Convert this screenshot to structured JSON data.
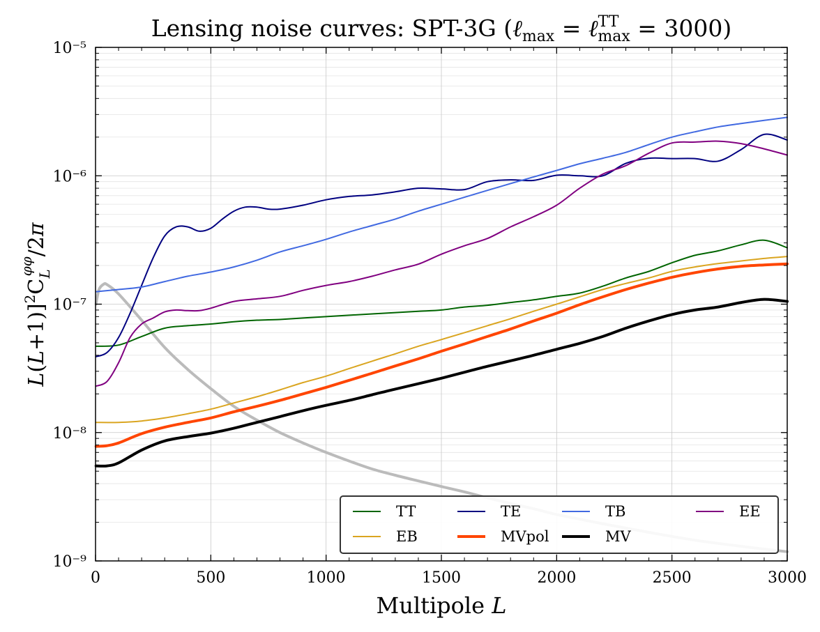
{
  "chart_data": {
    "type": "line",
    "title": "Lensing noise curves: SPT-3G (ℓmax = ℓTTmax = 3000)",
    "xlabel": "Multipole L",
    "ylabel": "L(L+1)]²C_L^φφ/2π",
    "xlim": [
      0,
      3000
    ],
    "ylim": [
      1e-09,
      1e-05
    ],
    "yscale": "log",
    "grid": true,
    "legend_position": "lower-right",
    "x_ticks": [
      "0",
      "500",
      "1000",
      "1500",
      "2000",
      "2500",
      "3000"
    ],
    "y_ticks": [
      "10⁻⁹",
      "10⁻⁸",
      "10⁻⁷",
      "10⁻⁶",
      "10⁻⁵"
    ],
    "series": [
      {
        "name": "TT",
        "color": "#006400",
        "width": 2,
        "points": [
          [
            2,
            4.7e-08
          ],
          [
            100,
            4.8e-08
          ],
          [
            200,
            5.6e-08
          ],
          [
            300,
            6.5e-08
          ],
          [
            400,
            6.8e-08
          ],
          [
            500,
            7e-08
          ],
          [
            600,
            7.3e-08
          ],
          [
            700,
            7.5e-08
          ],
          [
            800,
            7.6e-08
          ],
          [
            900,
            7.8e-08
          ],
          [
            1000,
            8e-08
          ],
          [
            1100,
            8.2e-08
          ],
          [
            1200,
            8.4e-08
          ],
          [
            1300,
            8.6e-08
          ],
          [
            1400,
            8.8e-08
          ],
          [
            1500,
            9e-08
          ],
          [
            1600,
            9.5e-08
          ],
          [
            1700,
            9.8e-08
          ],
          [
            1800,
            1.03e-07
          ],
          [
            1900,
            1.08e-07
          ],
          [
            2000,
            1.15e-07
          ],
          [
            2100,
            1.22e-07
          ],
          [
            2200,
            1.38e-07
          ],
          [
            2300,
            1.6e-07
          ],
          [
            2400,
            1.8e-07
          ],
          [
            2500,
            2.1e-07
          ],
          [
            2600,
            2.4e-07
          ],
          [
            2700,
            2.6e-07
          ],
          [
            2800,
            2.9e-07
          ],
          [
            2900,
            3.15e-07
          ],
          [
            3000,
            2.75e-07
          ]
        ]
      },
      {
        "name": "TE",
        "color": "#000080",
        "width": 2,
        "points": [
          [
            2,
            3.9e-08
          ],
          [
            50,
            4.2e-08
          ],
          [
            100,
            5.5e-08
          ],
          [
            150,
            8.5e-08
          ],
          [
            200,
            1.4e-07
          ],
          [
            250,
            2.3e-07
          ],
          [
            300,
            3.4e-07
          ],
          [
            350,
            4e-07
          ],
          [
            400,
            4e-07
          ],
          [
            450,
            3.7e-07
          ],
          [
            500,
            3.9e-07
          ],
          [
            550,
            4.6e-07
          ],
          [
            600,
            5.3e-07
          ],
          [
            650,
            5.7e-07
          ],
          [
            700,
            5.7e-07
          ],
          [
            750,
            5.5e-07
          ],
          [
            800,
            5.5e-07
          ],
          [
            900,
            5.9e-07
          ],
          [
            1000,
            6.5e-07
          ],
          [
            1100,
            6.9e-07
          ],
          [
            1200,
            7.1e-07
          ],
          [
            1300,
            7.5e-07
          ],
          [
            1400,
            8e-07
          ],
          [
            1500,
            7.9e-07
          ],
          [
            1600,
            7.8e-07
          ],
          [
            1700,
            9e-07
          ],
          [
            1800,
            9.3e-07
          ],
          [
            1900,
            9.2e-07
          ],
          [
            2000,
            1.01e-06
          ],
          [
            2100,
            1e-06
          ],
          [
            2200,
            1e-06
          ],
          [
            2300,
            1.25e-06
          ],
          [
            2400,
            1.37e-06
          ],
          [
            2500,
            1.36e-06
          ],
          [
            2600,
            1.36e-06
          ],
          [
            2700,
            1.3e-06
          ],
          [
            2800,
            1.6e-06
          ],
          [
            2900,
            2.1e-06
          ],
          [
            3000,
            1.9e-06
          ]
        ]
      },
      {
        "name": "TB",
        "color": "#4169e1",
        "width": 2,
        "points": [
          [
            2,
            1.25e-07
          ],
          [
            100,
            1.3e-07
          ],
          [
            200,
            1.36e-07
          ],
          [
            300,
            1.5e-07
          ],
          [
            400,
            1.65e-07
          ],
          [
            500,
            1.78e-07
          ],
          [
            600,
            1.95e-07
          ],
          [
            700,
            2.2e-07
          ],
          [
            800,
            2.55e-07
          ],
          [
            900,
            2.85e-07
          ],
          [
            1000,
            3.2e-07
          ],
          [
            1100,
            3.65e-07
          ],
          [
            1200,
            4.1e-07
          ],
          [
            1300,
            4.6e-07
          ],
          [
            1400,
            5.3e-07
          ],
          [
            1500,
            6e-07
          ],
          [
            1600,
            6.8e-07
          ],
          [
            1700,
            7.7e-07
          ],
          [
            1800,
            8.7e-07
          ],
          [
            1900,
            9.8e-07
          ],
          [
            2000,
            1.1e-06
          ],
          [
            2100,
            1.24e-06
          ],
          [
            2200,
            1.37e-06
          ],
          [
            2300,
            1.52e-06
          ],
          [
            2400,
            1.75e-06
          ],
          [
            2500,
            2e-06
          ],
          [
            2600,
            2.2e-06
          ],
          [
            2700,
            2.4e-06
          ],
          [
            2800,
            2.55e-06
          ],
          [
            2900,
            2.7e-06
          ],
          [
            3000,
            2.85e-06
          ]
        ]
      },
      {
        "name": "EE",
        "color": "#800080",
        "width": 2,
        "points": [
          [
            2,
            2.3e-08
          ],
          [
            50,
            2.5e-08
          ],
          [
            100,
            3.5e-08
          ],
          [
            150,
            5.5e-08
          ],
          [
            200,
            7e-08
          ],
          [
            250,
            7.8e-08
          ],
          [
            300,
            8.7e-08
          ],
          [
            350,
            9e-08
          ],
          [
            400,
            8.9e-08
          ],
          [
            450,
            8.9e-08
          ],
          [
            500,
            9.3e-08
          ],
          [
            600,
            1.05e-07
          ],
          [
            700,
            1.1e-07
          ],
          [
            800,
            1.15e-07
          ],
          [
            900,
            1.28e-07
          ],
          [
            1000,
            1.4e-07
          ],
          [
            1100,
            1.5e-07
          ],
          [
            1200,
            1.65e-07
          ],
          [
            1300,
            1.85e-07
          ],
          [
            1400,
            2.05e-07
          ],
          [
            1500,
            2.45e-07
          ],
          [
            1600,
            2.85e-07
          ],
          [
            1700,
            3.25e-07
          ],
          [
            1800,
            4e-07
          ],
          [
            1900,
            4.8e-07
          ],
          [
            2000,
            5.9e-07
          ],
          [
            2100,
            8e-07
          ],
          [
            2200,
            1.03e-06
          ],
          [
            2300,
            1.2e-06
          ],
          [
            2400,
            1.5e-06
          ],
          [
            2500,
            1.8e-06
          ],
          [
            2600,
            1.83e-06
          ],
          [
            2700,
            1.86e-06
          ],
          [
            2800,
            1.78e-06
          ],
          [
            2900,
            1.62e-06
          ],
          [
            3000,
            1.45e-06
          ]
        ]
      },
      {
        "name": "EB",
        "color": "#daa520",
        "width": 2,
        "points": [
          [
            2,
            1.2e-08
          ],
          [
            100,
            1.2e-08
          ],
          [
            200,
            1.23e-08
          ],
          [
            300,
            1.3e-08
          ],
          [
            400,
            1.4e-08
          ],
          [
            500,
            1.52e-08
          ],
          [
            600,
            1.7e-08
          ],
          [
            700,
            1.9e-08
          ],
          [
            800,
            2.15e-08
          ],
          [
            900,
            2.45e-08
          ],
          [
            1000,
            2.75e-08
          ],
          [
            1100,
            3.15e-08
          ],
          [
            1200,
            3.6e-08
          ],
          [
            1300,
            4.1e-08
          ],
          [
            1400,
            4.7e-08
          ],
          [
            1500,
            5.3e-08
          ],
          [
            1600,
            6e-08
          ],
          [
            1700,
            6.8e-08
          ],
          [
            1800,
            7.7e-08
          ],
          [
            1900,
            8.8e-08
          ],
          [
            2000,
            1e-07
          ],
          [
            2100,
            1.14e-07
          ],
          [
            2200,
            1.3e-07
          ],
          [
            2300,
            1.45e-07
          ],
          [
            2400,
            1.6e-07
          ],
          [
            2500,
            1.8e-07
          ],
          [
            2600,
            1.95e-07
          ],
          [
            2700,
            2.07e-07
          ],
          [
            2800,
            2.17e-07
          ],
          [
            2900,
            2.27e-07
          ],
          [
            3000,
            2.35e-07
          ]
        ]
      },
      {
        "name": "MVpol",
        "color": "#ff4500",
        "width": 4,
        "points": [
          [
            2,
            7.8e-09
          ],
          [
            50,
            7.9e-09
          ],
          [
            100,
            8.3e-09
          ],
          [
            200,
            9.8e-09
          ],
          [
            300,
            1.1e-08
          ],
          [
            400,
            1.2e-08
          ],
          [
            500,
            1.3e-08
          ],
          [
            600,
            1.45e-08
          ],
          [
            700,
            1.6e-08
          ],
          [
            800,
            1.78e-08
          ],
          [
            900,
            2e-08
          ],
          [
            1000,
            2.25e-08
          ],
          [
            1100,
            2.55e-08
          ],
          [
            1200,
            2.9e-08
          ],
          [
            1300,
            3.3e-08
          ],
          [
            1400,
            3.75e-08
          ],
          [
            1500,
            4.3e-08
          ],
          [
            1600,
            4.9e-08
          ],
          [
            1700,
            5.6e-08
          ],
          [
            1800,
            6.4e-08
          ],
          [
            1900,
            7.4e-08
          ],
          [
            2000,
            8.5e-08
          ],
          [
            2100,
            9.9e-08
          ],
          [
            2200,
            1.14e-07
          ],
          [
            2300,
            1.3e-07
          ],
          [
            2400,
            1.46e-07
          ],
          [
            2500,
            1.62e-07
          ],
          [
            2600,
            1.76e-07
          ],
          [
            2700,
            1.88e-07
          ],
          [
            2800,
            1.97e-07
          ],
          [
            2900,
            2.02e-07
          ],
          [
            3000,
            2.06e-07
          ]
        ]
      },
      {
        "name": "MV",
        "color": "#000000",
        "width": 4,
        "points": [
          [
            2,
            5.5e-09
          ],
          [
            50,
            5.5e-09
          ],
          [
            100,
            5.8e-09
          ],
          [
            200,
            7.3e-09
          ],
          [
            300,
            8.6e-09
          ],
          [
            400,
            9.3e-09
          ],
          [
            500,
            9.9e-09
          ],
          [
            600,
            1.08e-08
          ],
          [
            700,
            1.2e-08
          ],
          [
            800,
            1.33e-08
          ],
          [
            900,
            1.48e-08
          ],
          [
            1000,
            1.63e-08
          ],
          [
            1100,
            1.78e-08
          ],
          [
            1200,
            1.97e-08
          ],
          [
            1300,
            2.18e-08
          ],
          [
            1400,
            2.4e-08
          ],
          [
            1500,
            2.65e-08
          ],
          [
            1600,
            2.95e-08
          ],
          [
            1700,
            3.28e-08
          ],
          [
            1800,
            3.62e-08
          ],
          [
            1900,
            4e-08
          ],
          [
            2000,
            4.45e-08
          ],
          [
            2100,
            4.95e-08
          ],
          [
            2200,
            5.6e-08
          ],
          [
            2300,
            6.5e-08
          ],
          [
            2400,
            7.4e-08
          ],
          [
            2500,
            8.3e-08
          ],
          [
            2600,
            9e-08
          ],
          [
            2700,
            9.5e-08
          ],
          [
            2800,
            1.03e-07
          ],
          [
            2900,
            1.09e-07
          ],
          [
            3000,
            1.05e-07
          ]
        ]
      },
      {
        "color": "#bbbbbb",
        "width": 4,
        "points": [
          [
            2,
            1e-07
          ],
          [
            15,
            1.3e-07
          ],
          [
            35,
            1.43e-07
          ],
          [
            50,
            1.42e-07
          ],
          [
            100,
            1.2e-07
          ],
          [
            200,
            7.5e-08
          ],
          [
            300,
            4.6e-08
          ],
          [
            400,
            3.1e-08
          ],
          [
            500,
            2.2e-08
          ],
          [
            600,
            1.6e-08
          ],
          [
            700,
            1.25e-08
          ],
          [
            800,
            1e-08
          ],
          [
            900,
            8.3e-09
          ],
          [
            1000,
            7e-09
          ],
          [
            1100,
            6e-09
          ],
          [
            1200,
            5.2e-09
          ],
          [
            1300,
            4.65e-09
          ],
          [
            1400,
            4.2e-09
          ],
          [
            1500,
            3.8e-09
          ],
          [
            1600,
            3.45e-09
          ],
          [
            1700,
            3.1e-09
          ],
          [
            1800,
            2.8e-09
          ],
          [
            1900,
            2.55e-09
          ],
          [
            2000,
            2.3e-09
          ],
          [
            2200,
            1.95e-09
          ],
          [
            2400,
            1.67e-09
          ],
          [
            2600,
            1.45e-09
          ],
          [
            2800,
            1.3e-09
          ],
          [
            3000,
            1.18e-09
          ]
        ]
      }
    ]
  }
}
